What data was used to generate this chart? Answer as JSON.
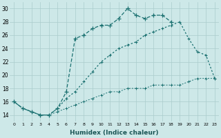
{
  "xlabel": "Humidex (Indice chaleur)",
  "background_color": "#cde8e8",
  "grid_color": "#aacccc",
  "line_color": "#1a7070",
  "xlim": [
    -0.5,
    23.5
  ],
  "ylim": [
    13,
    31
  ],
  "yticks": [
    14,
    16,
    18,
    20,
    22,
    24,
    26,
    28,
    30
  ],
  "xticks": [
    0,
    1,
    2,
    3,
    4,
    5,
    6,
    7,
    8,
    9,
    10,
    11,
    12,
    13,
    14,
    15,
    16,
    17,
    18,
    19,
    20,
    21,
    22,
    23
  ],
  "s1_x": [
    0,
    1,
    2,
    3,
    4,
    5,
    6,
    7,
    8,
    9,
    10,
    11,
    12,
    13,
    14,
    15,
    16,
    17,
    18
  ],
  "s1_y": [
    16,
    15,
    14.5,
    14,
    14,
    15,
    17.5,
    25.5,
    26,
    27,
    27.5,
    27.5,
    28.5,
    30,
    29,
    28.5,
    29,
    29,
    28
  ],
  "s2_x": [
    0,
    1,
    2,
    3,
    4,
    5,
    6,
    7,
    8,
    9,
    10,
    11,
    12,
    13,
    14,
    15,
    16,
    17,
    18,
    19,
    20,
    21,
    22,
    23
  ],
  "s2_y": [
    16,
    15,
    14.5,
    14,
    14,
    15,
    16.5,
    17.5,
    19,
    20.5,
    22,
    23,
    24,
    24.5,
    25,
    26,
    26.5,
    27,
    27.5,
    28,
    25.5,
    23.5,
    23,
    19.5
  ],
  "s3_x": [
    0,
    1,
    2,
    3,
    4,
    5,
    6,
    7,
    8,
    9,
    10,
    11,
    12,
    13,
    14,
    15,
    16,
    17,
    18,
    19,
    20,
    21,
    22,
    23
  ],
  "s3_y": [
    16,
    15,
    14.5,
    14,
    14,
    14.5,
    15,
    15.5,
    16,
    16.5,
    17,
    17.5,
    17.5,
    18,
    18,
    18,
    18.5,
    18.5,
    18.5,
    18.5,
    19,
    19.5,
    19.5,
    19.5
  ]
}
